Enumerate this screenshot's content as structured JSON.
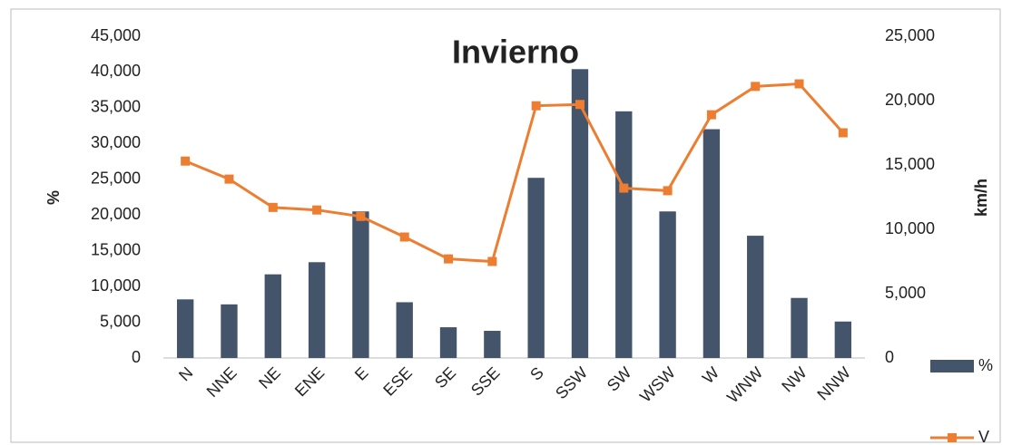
{
  "chart_data": {
    "type": "bar_line",
    "title": "Invierno",
    "ylabel": "%",
    "y2label": "km/h",
    "categories": [
      "N",
      "NNE",
      "NE",
      "ENE",
      "E",
      "ESE",
      "SE",
      "SSE",
      "S",
      "SSW",
      "SW",
      "WSW",
      "W",
      "WNW",
      "NW",
      "NNW"
    ],
    "series": [
      {
        "name": "%",
        "type": "bar",
        "color": "#44546a",
        "axis": "y",
        "values": [
          8200,
          7500,
          11700,
          13400,
          20500,
          7800,
          4300,
          3800,
          25200,
          40400,
          34500,
          20500,
          32000,
          17100,
          8400,
          5100
        ]
      },
      {
        "name": "V",
        "type": "line",
        "color": "#ed7d31",
        "axis": "y2",
        "values": [
          15300,
          13900,
          11700,
          11500,
          11000,
          9400,
          7700,
          7500,
          19600,
          19700,
          13200,
          13000,
          18900,
          21100,
          21300,
          17500
        ]
      }
    ],
    "ylim": [
      0,
      45000
    ],
    "yticks": [
      {
        "value": 0,
        "label": "0"
      },
      {
        "value": 5000,
        "label": "5,000"
      },
      {
        "value": 10000,
        "label": "10,000"
      },
      {
        "value": 15000,
        "label": "15,000"
      },
      {
        "value": 20000,
        "label": "20,000"
      },
      {
        "value": 25000,
        "label": "25,000"
      },
      {
        "value": 30000,
        "label": "30,000"
      },
      {
        "value": 35000,
        "label": "35,000"
      },
      {
        "value": 40000,
        "label": "40,000"
      },
      {
        "value": 45000,
        "label": "45,000"
      }
    ],
    "y2lim": [
      0,
      25000
    ],
    "y2ticks": [
      {
        "value": 0,
        "label": "0"
      },
      {
        "value": 5000,
        "label": "5,000"
      },
      {
        "value": 10000,
        "label": "10,000"
      },
      {
        "value": 15000,
        "label": "15,000"
      },
      {
        "value": 20000,
        "label": "20,000"
      },
      {
        "value": 25000,
        "label": "25,000"
      }
    ],
    "grid": false,
    "legend": "right"
  }
}
